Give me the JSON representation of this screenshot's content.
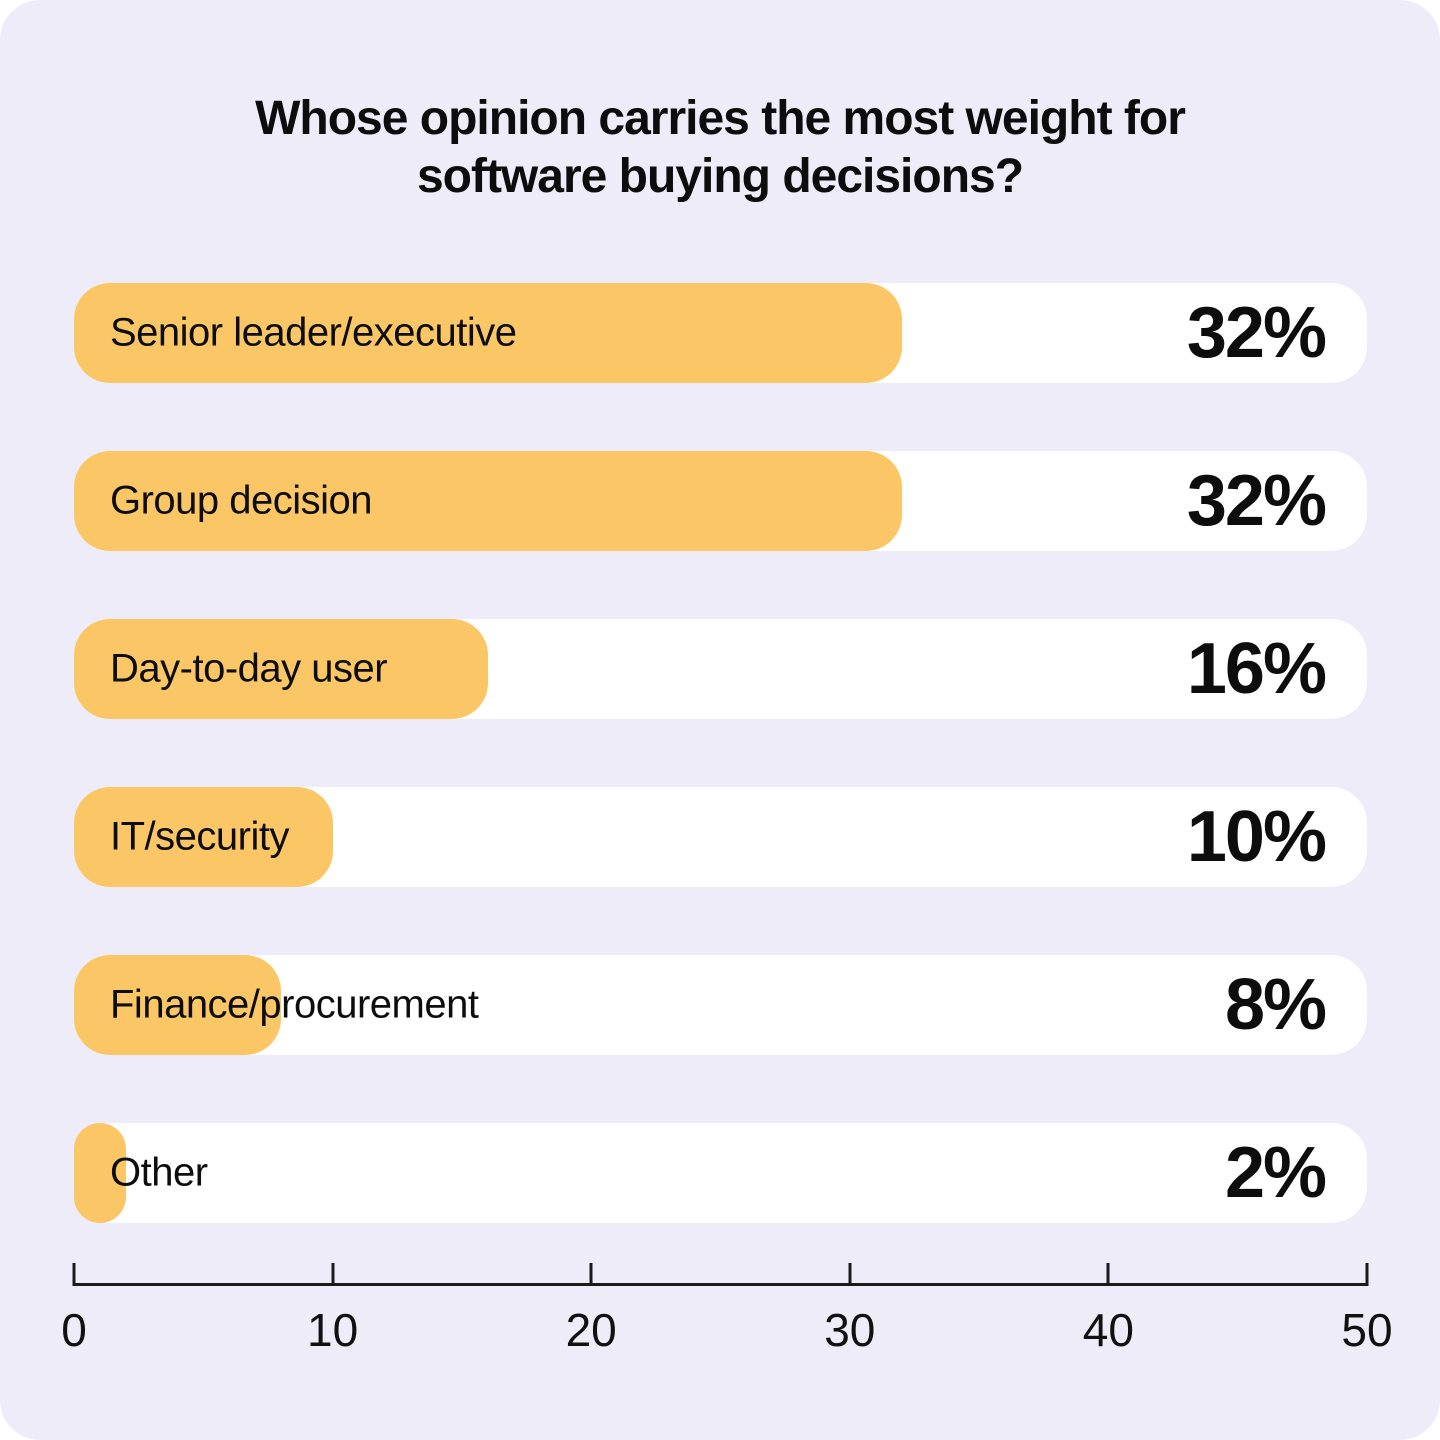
{
  "title": "Whose opinion carries the most weight for software buying decisions?",
  "colors": {
    "background": "#EDECF8",
    "bar": "#FBC766",
    "track": "#FFFFFF",
    "text": "#0D0D0D",
    "axis": "#1A1A1A"
  },
  "chart_data": {
    "type": "bar",
    "orientation": "horizontal",
    "title": "Whose opinion carries the most weight for software buying decisions?",
    "categories": [
      "Senior leader/executive",
      "Group decision",
      "Day-to-day user",
      "IT/security",
      "Finance/procurement",
      "Other"
    ],
    "values": [
      32,
      32,
      16,
      10,
      8,
      2
    ],
    "value_labels": [
      "32%",
      "32%",
      "16%",
      "10%",
      "8%",
      "2%"
    ],
    "xlabel": "",
    "ylabel": "",
    "xlim": [
      0,
      50
    ],
    "x_ticks": [
      0,
      10,
      20,
      30,
      40,
      50
    ],
    "grid": false,
    "legend": false
  }
}
